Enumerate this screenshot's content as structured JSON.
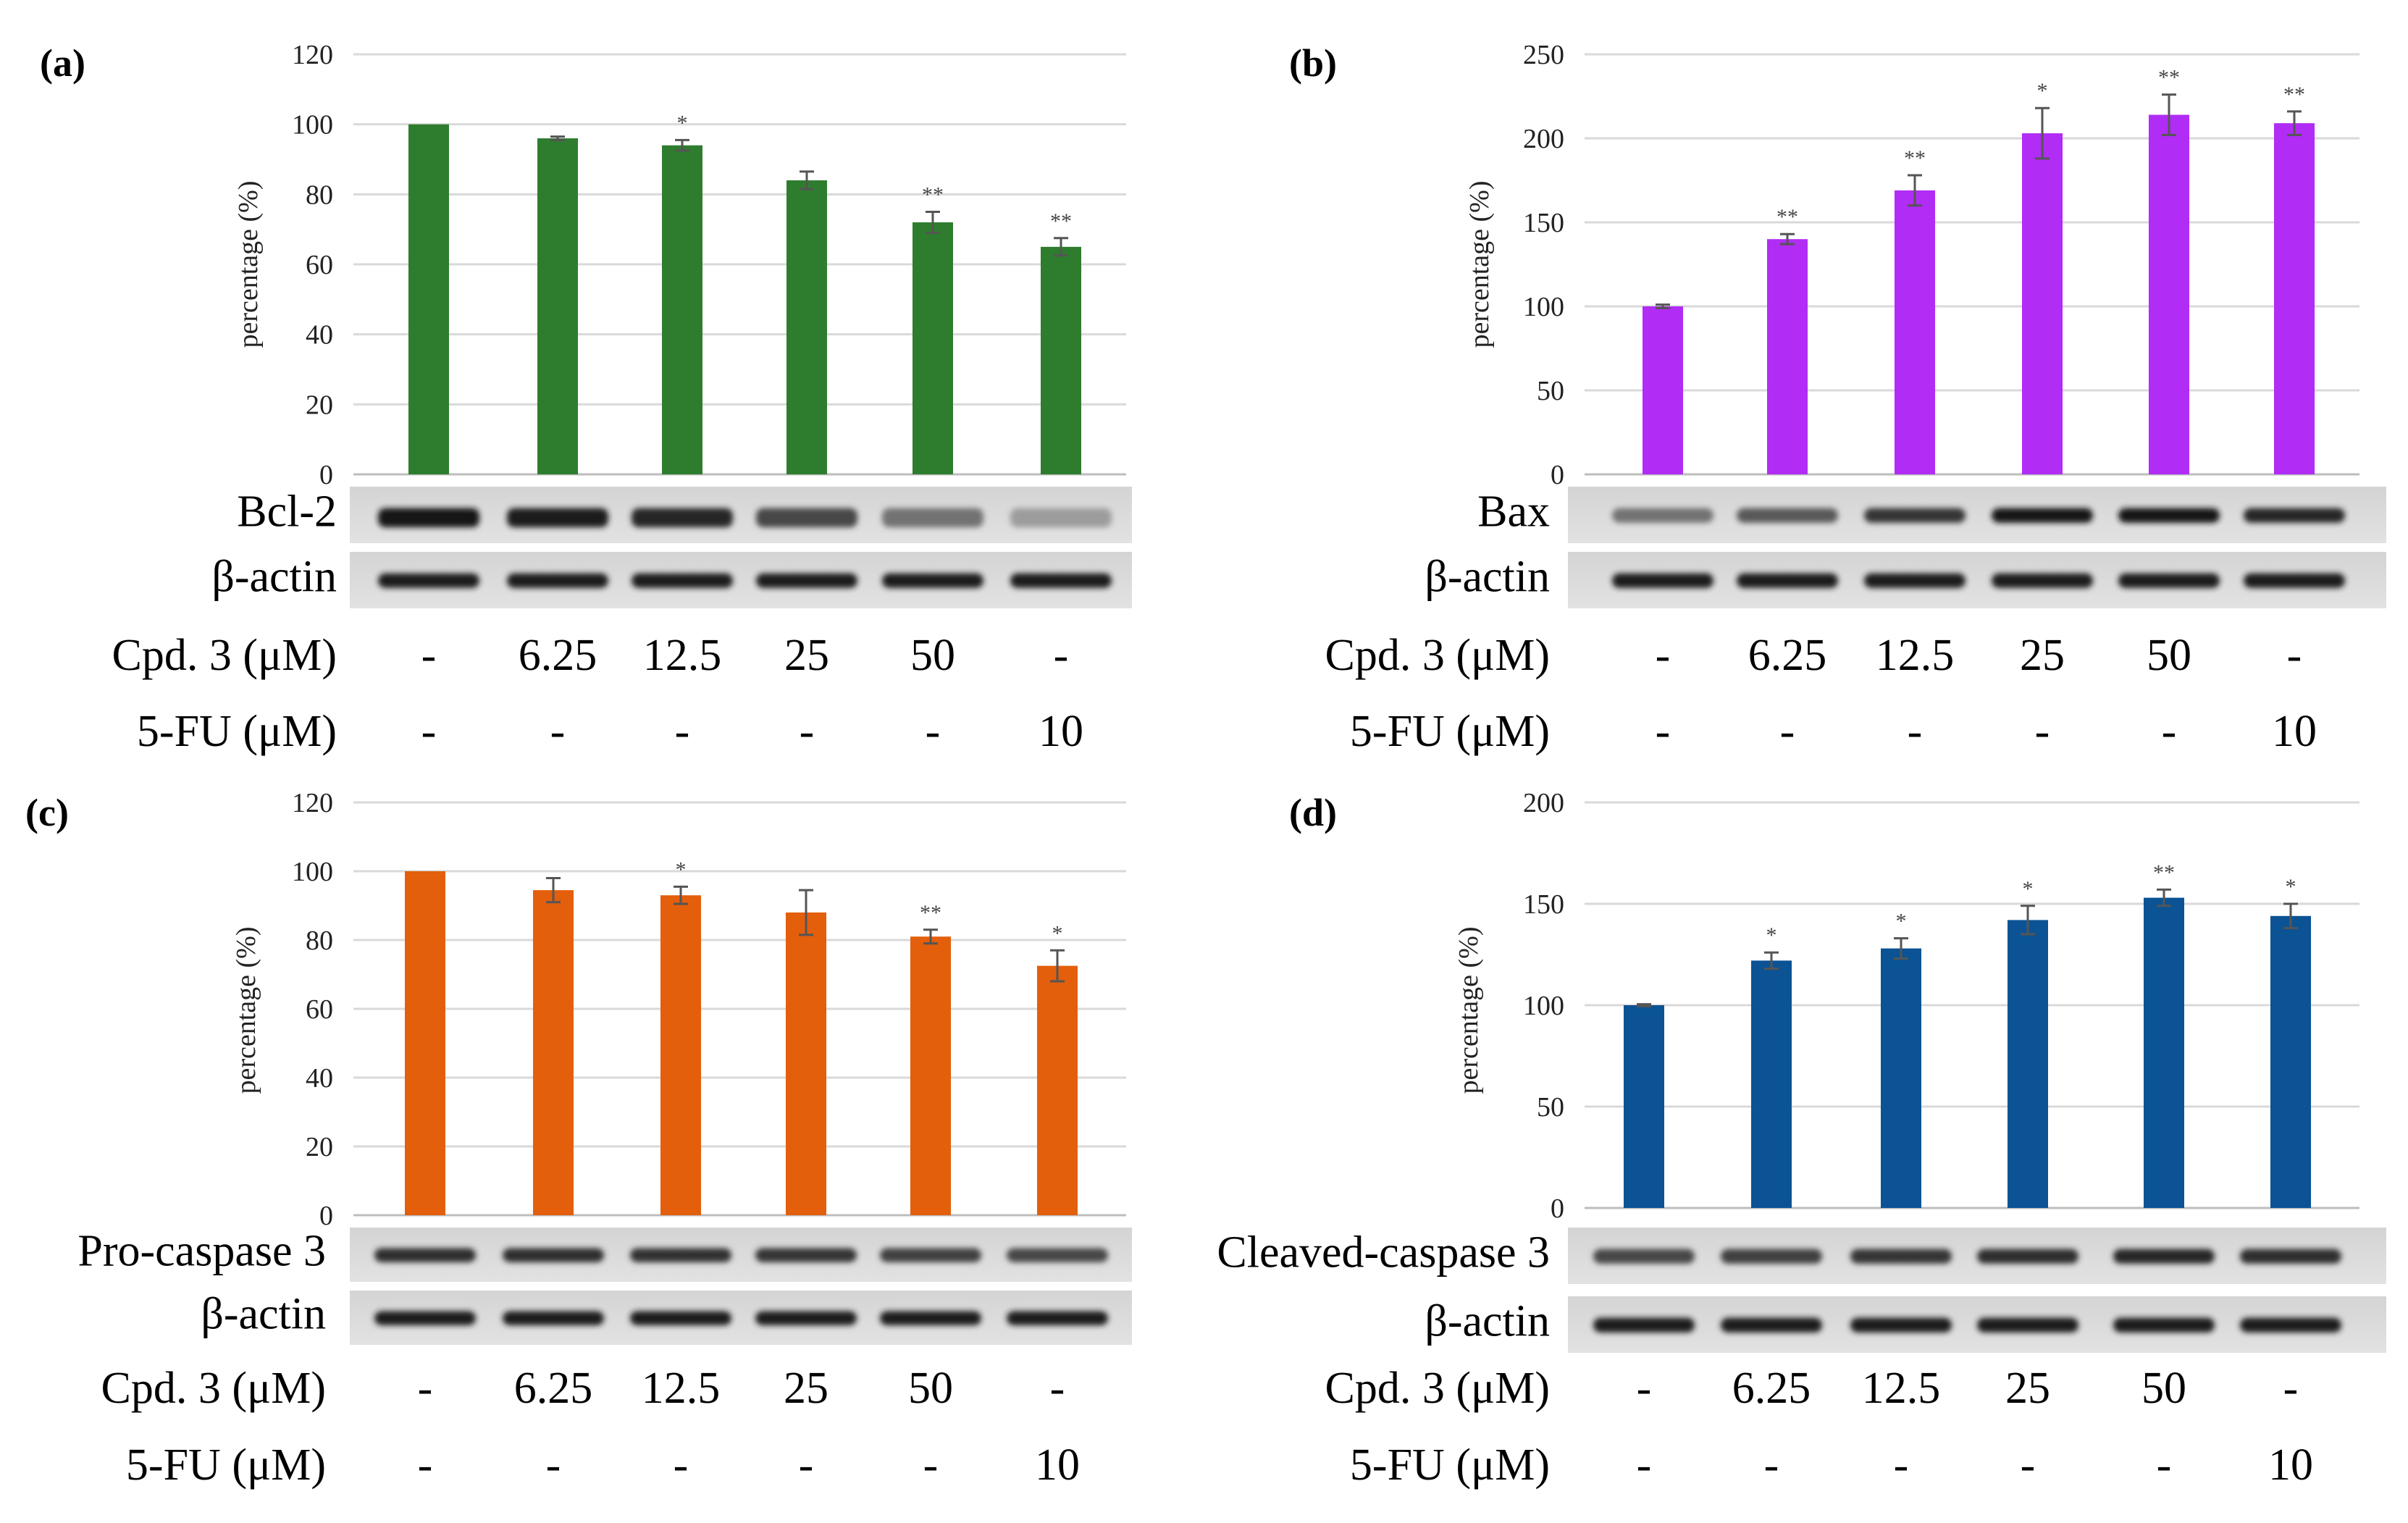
{
  "chart_data": [
    {
      "type": "bar",
      "panel": "(a)",
      "ylabel": "percentage (%)",
      "ylim": [
        0,
        120
      ],
      "yticks": [
        0,
        20,
        40,
        60,
        80,
        100,
        120
      ],
      "color": "#2e7d2e",
      "values": [
        100,
        96,
        94,
        84,
        72,
        65
      ],
      "errors": [
        0,
        0.5,
        1.5,
        2.5,
        3,
        2.5
      ],
      "significance": [
        "",
        "",
        "*",
        "",
        "**",
        "**"
      ],
      "blots": [
        "Bcl-2",
        "β-actin"
      ],
      "cpd_label": "Cpd. 3 (μM)",
      "cpd_values": [
        "-",
        "6.25",
        "12.5",
        "25",
        "50",
        "-"
      ],
      "fu_label": "5-FU (μM)",
      "fu_values": [
        "-",
        "-",
        "-",
        "-",
        "-",
        "10"
      ]
    },
    {
      "type": "bar",
      "panel": "(b)",
      "ylabel": "percentage (%)",
      "ylim": [
        0,
        250
      ],
      "yticks": [
        0,
        50,
        100,
        150,
        200,
        250
      ],
      "color": "#b12cf5",
      "values": [
        100,
        140,
        169,
        203,
        214,
        209
      ],
      "errors": [
        1,
        3,
        9,
        15,
        12,
        7
      ],
      "significance": [
        "",
        "**",
        "**",
        "*",
        "**",
        "**"
      ],
      "blots": [
        "Bax",
        "β-actin"
      ],
      "cpd_label": "Cpd. 3 (μM)",
      "cpd_values": [
        "-",
        "6.25",
        "12.5",
        "25",
        "50",
        "-"
      ],
      "fu_label": "5-FU (μM)",
      "fu_values": [
        "-",
        "-",
        "-",
        "-",
        "-",
        "10"
      ]
    },
    {
      "type": "bar",
      "panel": "(c)",
      "ylabel": "percentage (%)",
      "ylim": [
        0,
        120
      ],
      "yticks": [
        0,
        20,
        40,
        60,
        80,
        100,
        120
      ],
      "color": "#e35f0c",
      "values": [
        100,
        94.5,
        93,
        88,
        81,
        72.5
      ],
      "errors": [
        0,
        3.5,
        2.5,
        6.5,
        2,
        4.5
      ],
      "significance": [
        "",
        "",
        "*",
        "",
        "**",
        "*"
      ],
      "blots": [
        "Pro-caspase 3",
        "β-actin"
      ],
      "cpd_label": "Cpd. 3 (μM)",
      "cpd_values": [
        "-",
        "6.25",
        "12.5",
        "25",
        "50",
        "-"
      ],
      "fu_label": "5-FU (μM)",
      "fu_values": [
        "-",
        "-",
        "-",
        "-",
        "-",
        "10"
      ]
    },
    {
      "type": "bar",
      "panel": "(d)",
      "ylabel": "percentage (%)",
      "ylim": [
        0,
        200
      ],
      "yticks": [
        0,
        50,
        100,
        150,
        200
      ],
      "color": "#0b5394",
      "values": [
        100,
        122,
        128,
        142,
        153,
        144
      ],
      "errors": [
        0.5,
        4,
        5,
        7,
        4,
        6
      ],
      "significance": [
        "",
        "*",
        "*",
        "*",
        "**",
        "*"
      ],
      "blots": [
        "Cleaved-caspase 3",
        "β-actin"
      ],
      "cpd_label": "Cpd. 3 (μM)",
      "cpd_values": [
        "-",
        "6.25",
        "12.5",
        "25",
        "50",
        "-"
      ],
      "fu_label": "5-FU (μM)",
      "fu_values": [
        "-",
        "-",
        "-",
        "-",
        "-",
        "10"
      ]
    }
  ]
}
